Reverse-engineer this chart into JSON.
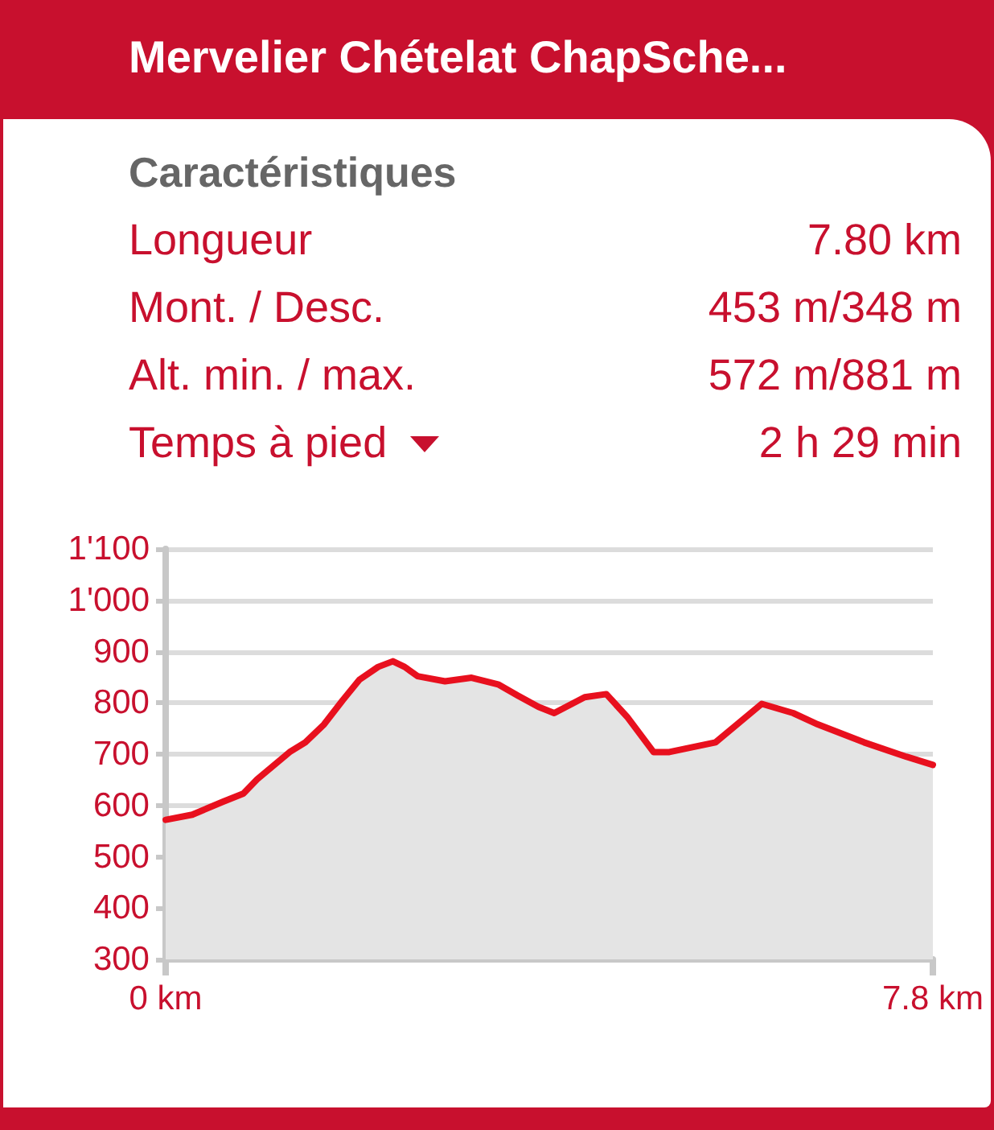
{
  "chart_data": {
    "type": "area",
    "title": "Mervelier Chételat ChapSche...",
    "subtitle": "Caractéristiques",
    "annotations": [
      "Longueur",
      "7.80 km",
      "Mont. / Desc.",
      "453 m/348 m",
      "Alt. min. / max.",
      "572 m/881 m",
      "Temps à pied",
      "2 h 29 min"
    ],
    "x": [
      0,
      0.27,
      0.58,
      0.79,
      0.93,
      1.26,
      1.42,
      1.61,
      1.8,
      1.97,
      2.16,
      2.31,
      2.43,
      2.56,
      2.84,
      3.11,
      3.38,
      3.58,
      3.79,
      3.95,
      4.26,
      4.48,
      4.69,
      4.96,
      5.12,
      5.59,
      6.06,
      6.38,
      6.63,
      7.1,
      7.53,
      7.8
    ],
    "series": [
      {
        "color": "#e8101e",
        "values": [
          572,
          582,
          607,
          623,
          651,
          704,
          723,
          758,
          805,
          845,
          870,
          881,
          870,
          852,
          842,
          849,
          836,
          814,
          792,
          780,
          811,
          817,
          773,
          704,
          704,
          723,
          798,
          780,
          758,
          723,
          695,
          679
        ]
      }
    ],
    "xlim": [
      0,
      7.8
    ],
    "xticks": [
      {
        "value": 0,
        "label": "0 km"
      },
      {
        "value": 7.8,
        "label": "7.8 km"
      }
    ],
    "ylim": [
      300,
      1100
    ],
    "yticks": [
      300,
      400,
      500,
      600,
      700,
      800,
      900,
      {
        "value": 1000,
        "label": "1'000"
      },
      {
        "value": 1100,
        "label": "1'100"
      }
    ],
    "grid": "y",
    "marker": "none",
    "line_style": "solid"
  }
}
